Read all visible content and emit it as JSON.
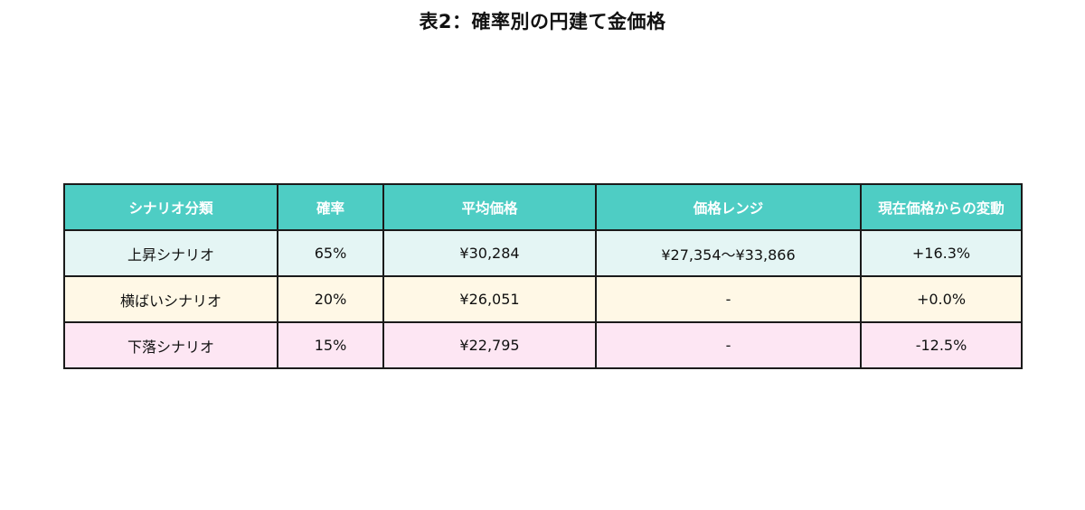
{
  "title": "表2：確率別の円建て金価格",
  "colors": {
    "header_bg": "#4ecdc4",
    "header_text": "#ffffff",
    "border": "#1a1a1a",
    "row_up_bg": "#e4f5f4",
    "row_flat_bg": "#fff8e6",
    "row_down_bg": "#fde6f3"
  },
  "chart_data": {
    "type": "table",
    "title": "表2：確率別の円建て金価格",
    "columns": [
      "シナリオ分類",
      "確率",
      "平均価格",
      "価格レンジ",
      "現在価格からの変動"
    ],
    "rows": [
      {
        "scenario": "上昇シナリオ",
        "probability": "65%",
        "avg_price": "¥30,284",
        "price_range": "¥27,354～¥33,866",
        "change": "+16.3%",
        "color": "#e4f5f4"
      },
      {
        "scenario": "横ばいシナリオ",
        "probability": "20%",
        "avg_price": "¥26,051",
        "price_range": "-",
        "change": "+0.0%",
        "color": "#fff8e6"
      },
      {
        "scenario": "下落シナリオ",
        "probability": "15%",
        "avg_price": "¥22,795",
        "price_range": "-",
        "change": "-12.5%",
        "color": "#fde6f3"
      }
    ]
  }
}
